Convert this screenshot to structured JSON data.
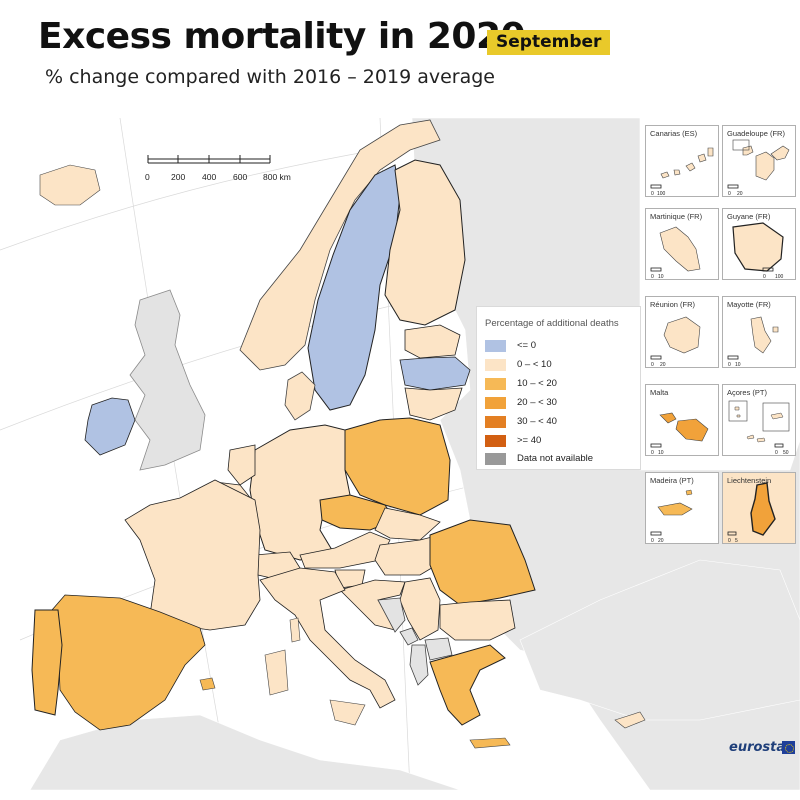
{
  "header": {
    "title": "Excess mortality in 2020",
    "month": "September",
    "subtitle": "% change compared with 2016 – 2019 average"
  },
  "scale": {
    "ticks": [
      "0",
      "200",
      "400",
      "600",
      "800 km"
    ]
  },
  "legend": {
    "title": "Percentage of additional deaths",
    "items": [
      {
        "label": "<= 0",
        "color": "#b0c2e3"
      },
      {
        "label": "0 – < 10",
        "color": "#fce4c6"
      },
      {
        "label": "10 – < 20",
        "color": "#f6b956"
      },
      {
        "label": "20 – < 30",
        "color": "#f1a23a"
      },
      {
        "label": "30 – < 40",
        "color": "#e37f23"
      },
      {
        "label": ">= 40",
        "color": "#d25f12"
      },
      {
        "label": "Data not available",
        "color": "#999999"
      }
    ]
  },
  "insets": [
    {
      "name": "Canarias (ES)",
      "scale": "0  100"
    },
    {
      "name": "Guadeloupe (FR)",
      "scale": "0  20"
    },
    {
      "name": "Martinique (FR)",
      "scale": "0  10"
    },
    {
      "name": "Guyane (FR)",
      "scale": "0  100"
    },
    {
      "name": "Réunion (FR)",
      "scale": "0  20"
    },
    {
      "name": "Mayotte (FR)",
      "scale": "0  10"
    },
    {
      "name": "Malta",
      "scale": "0  10"
    },
    {
      "name": "Açores (PT)",
      "scale": "0  50"
    },
    {
      "name": "Madeira (PT)",
      "scale": "0  20"
    },
    {
      "name": "Liechtenstein",
      "scale": "0  5"
    }
  ],
  "countries": [
    {
      "name": "Ireland",
      "category": "<= 0"
    },
    {
      "name": "Sweden",
      "category": "<= 0"
    },
    {
      "name": "Latvia",
      "category": "<= 0"
    },
    {
      "name": "Finland",
      "category": "0 – < 10"
    },
    {
      "name": "Norway",
      "category": "0 – < 10"
    },
    {
      "name": "Denmark",
      "category": "0 – < 10"
    },
    {
      "name": "Estonia",
      "category": "0 – < 10"
    },
    {
      "name": "Lithuania",
      "category": "0 – < 10"
    },
    {
      "name": "Germany",
      "category": "0 – < 10"
    },
    {
      "name": "France",
      "category": "0 – < 10"
    },
    {
      "name": "Italy",
      "category": "0 – < 10"
    },
    {
      "name": "Belgium",
      "category": "0 – < 10"
    },
    {
      "name": "Netherlands",
      "category": "0 – < 10"
    },
    {
      "name": "Luxembourg",
      "category": "0 – < 10"
    },
    {
      "name": "Switzerland",
      "category": "0 – < 10"
    },
    {
      "name": "Austria",
      "category": "0 – < 10"
    },
    {
      "name": "Slovakia",
      "category": "0 – < 10"
    },
    {
      "name": "Hungary",
      "category": "0 – < 10"
    },
    {
      "name": "Slovenia",
      "category": "0 – < 10"
    },
    {
      "name": "Croatia",
      "category": "0 – < 10"
    },
    {
      "name": "Serbia",
      "category": "0 – < 10"
    },
    {
      "name": "Bulgaria",
      "category": "0 – < 10"
    },
    {
      "name": "Portugal",
      "category": "10 – < 20"
    },
    {
      "name": "Spain",
      "category": "10 – < 20"
    },
    {
      "name": "Poland",
      "category": "10 – < 20"
    },
    {
      "name": "Czechia",
      "category": "10 – < 20"
    },
    {
      "name": "Romania",
      "category": "10 – < 20"
    },
    {
      "name": "Greece",
      "category": "10 – < 20"
    },
    {
      "name": "Cyprus",
      "category": "0 – < 10"
    },
    {
      "name": "Malta",
      "category": "20 – < 30"
    },
    {
      "name": "Liechtenstein",
      "category": "20 – < 30"
    },
    {
      "name": "United Kingdom",
      "category": "Data not available"
    },
    {
      "name": "Bosnia and Herzegovina",
      "category": "Data not available"
    },
    {
      "name": "Montenegro",
      "category": "Data not available"
    },
    {
      "name": "North Macedonia",
      "category": "Data not available"
    },
    {
      "name": "Albania",
      "category": "Data not available"
    }
  ],
  "logo": "eurostat"
}
